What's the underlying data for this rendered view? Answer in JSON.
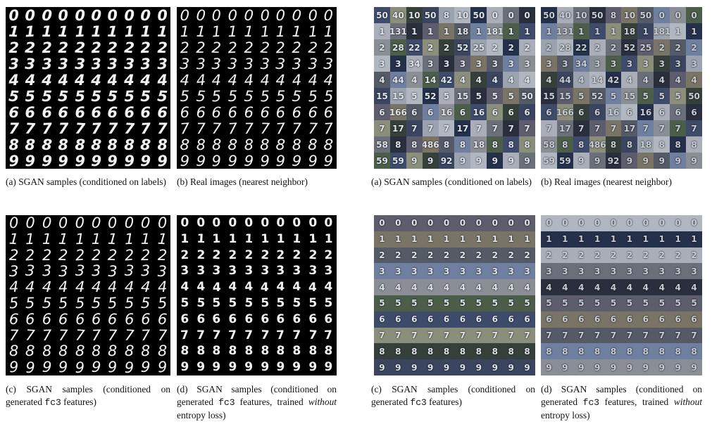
{
  "digits": [
    "0",
    "1",
    "2",
    "3",
    "4",
    "5",
    "6",
    "7",
    "8",
    "9"
  ],
  "svhn_tile_colors": [
    "#6a6f7a",
    "#3b4560",
    "#8a8f96",
    "#2a2f3d",
    "#9aa3ae",
    "#4c5d4a",
    "#5d5d6e",
    "#b0b7c0",
    "#3e4b6b",
    "#7a7466",
    "#25304a",
    "#8b8e7a",
    "#545a66",
    "#a9aeb8",
    "#36403a",
    "#6f7fa0"
  ],
  "svhn_tile_labels": [
    [
      "50",
      "40",
      "10",
      "50",
      "8",
      "10",
      "50",
      "0",
      "0",
      "0"
    ],
    [
      "1",
      "131",
      "1",
      "1",
      "1",
      "18",
      "1",
      "181",
      "1",
      "1"
    ],
    [
      "2",
      "28",
      "22",
      "2",
      "2",
      "52",
      "25",
      "2",
      "2",
      "2"
    ],
    [
      "3",
      "3",
      "34",
      "3",
      "3",
      "3",
      "3",
      "3",
      "3",
      "3"
    ],
    [
      "4",
      "44",
      "4",
      "14",
      "42",
      "4",
      "4",
      "4",
      "4",
      "4"
    ],
    [
      "15",
      "15",
      "5",
      "52",
      "5",
      "15",
      "5",
      "5",
      "5",
      "50"
    ],
    [
      "6",
      "166",
      "6",
      "6",
      "16",
      "6",
      "16",
      "6",
      "6",
      "6"
    ],
    [
      "7",
      "17",
      "7",
      "7",
      "7",
      "17",
      "7",
      "7",
      "7",
      "7"
    ],
    [
      "58",
      "8",
      "8",
      "486",
      "8",
      "8",
      "18",
      "8",
      "8",
      "8"
    ],
    [
      "59",
      "59",
      "9",
      "9",
      "92",
      "9",
      "9",
      "9",
      "9",
      "9"
    ]
  ],
  "panels": [
    {
      "caption": "(a) SGAN samples (conditioned on labels)"
    },
    {
      "caption": "(b) Real images (nearest neighbor)"
    },
    {
      "caption_pre": "(c) SGAN samples (conditioned on generated ",
      "caption_code": "fc3",
      "caption_post": " features)"
    },
    {
      "caption_pre": "(d) SGAN samples (conditioned on generated ",
      "caption_code": "fc3",
      "caption_post": " features, trained ",
      "caption_italic": "without",
      "caption_tail": " entropy loss)"
    },
    {
      "caption": "(a) SGAN samples (conditioned on labels)"
    },
    {
      "caption": "(b) Real images (nearest neighbor)"
    },
    {
      "caption_pre": "(c) SGAN samples (conditioned on generated ",
      "caption_code": "fc3",
      "caption_post": " features)"
    },
    {
      "caption_pre": "(d) SGAN samples (conditioned on generated ",
      "caption_code": "fc3",
      "caption_post": " features, trained ",
      "caption_italic": "without",
      "caption_tail": " entropy loss)"
    }
  ]
}
